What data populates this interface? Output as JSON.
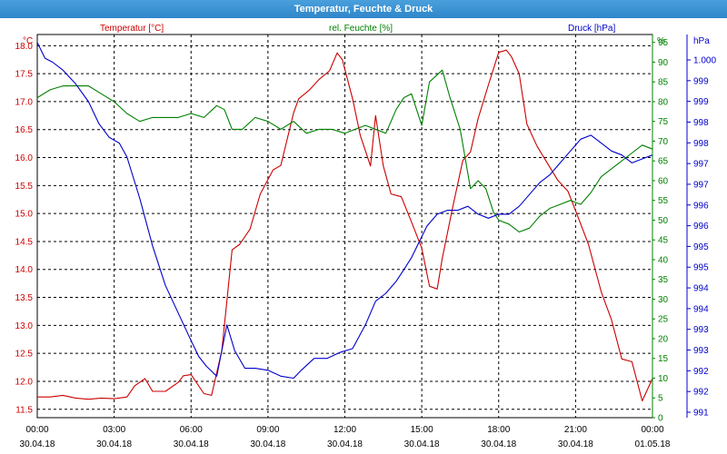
{
  "window": {
    "title": "Temperatur, Feuchte & Druck"
  },
  "chart_data": {
    "type": "line",
    "title": "Temperatur, Feuchte & Druck",
    "x_range": [
      "30.04.18 00:00",
      "01.05.18 00:00"
    ],
    "x_ticks": [
      {
        "time": "00:00",
        "date": "30.04.18"
      },
      {
        "time": "03:00",
        "date": "30.04.18"
      },
      {
        "time": "06:00",
        "date": "30.04.18"
      },
      {
        "time": "09:00",
        "date": "30.04.18"
      },
      {
        "time": "12:00",
        "date": "30.04.18"
      },
      {
        "time": "15:00",
        "date": "30.04.18"
      },
      {
        "time": "18:00",
        "date": "30.04.18"
      },
      {
        "time": "21:00",
        "date": "30.04.18"
      },
      {
        "time": "00:00",
        "date": "01.05.18"
      }
    ],
    "grid": true,
    "axes": {
      "temperature": {
        "label": "Temperatur [°C]",
        "unit": "°C",
        "color": "#cc0000",
        "ylim": [
          11.35,
          18.2
        ],
        "ticks": [
          "11.5",
          "12.0",
          "12.5",
          "13.0",
          "13.5",
          "14.0",
          "14.5",
          "15.0",
          "15.5",
          "16.0",
          "16.5",
          "17.0",
          "17.5",
          "18.0"
        ]
      },
      "humidity": {
        "label": "rel. Feuchte [%]",
        "unit": "%",
        "color": "#008000",
        "ylim": [
          0,
          97
        ],
        "ticks": [
          "0",
          "5",
          "10",
          "15",
          "20",
          "25",
          "30",
          "35",
          "40",
          "45",
          "50",
          "55",
          "60",
          "65",
          "70",
          "75",
          "80",
          "85",
          "90",
          "95"
        ]
      },
      "pressure": {
        "label": "Druck [hPa]",
        "unit": "hPa",
        "color": "#0000cc",
        "ylim": [
          990.85,
          1000.55
        ],
        "ticks": [
          "991",
          "992",
          "992",
          "993",
          "993",
          "994",
          "994",
          "995",
          "995",
          "996",
          "996",
          "997",
          "997",
          "998",
          "998",
          "999",
          "999",
          "1.000"
        ]
      }
    },
    "series": [
      {
        "name": "Temperatur [°C]",
        "axis": "temperature",
        "color": "#cc0000",
        "x": [
          0,
          0.5,
          1,
          1.5,
          2,
          2.5,
          3,
          3.5,
          3.8,
          4.2,
          4.5,
          5,
          5.5,
          5.7,
          6,
          6.5,
          6.8,
          7.2,
          7.6,
          7.9,
          8.3,
          8.7,
          9.2,
          9.5,
          10,
          10.2,
          10.6,
          11,
          11.4,
          11.7,
          11.9,
          12.3,
          12.6,
          13.0,
          13.2,
          13.5,
          13.8,
          14.2,
          14.6,
          15,
          15.3,
          15.6,
          15.8,
          16.2,
          16.6,
          16.9,
          17.2,
          17.6,
          18,
          18.3,
          18.5,
          18.8,
          19.1,
          19.5,
          19.9,
          20.3,
          20.7,
          21,
          21.5,
          22,
          22.4,
          22.8,
          23.2,
          23.6,
          24
        ],
        "y": [
          11.72,
          11.72,
          11.75,
          11.7,
          11.68,
          11.7,
          11.69,
          11.72,
          11.92,
          12.05,
          11.82,
          11.82,
          11.98,
          12.1,
          12.12,
          11.78,
          11.75,
          12.55,
          14.35,
          14.45,
          14.72,
          15.35,
          15.78,
          15.86,
          16.8,
          17.05,
          17.2,
          17.4,
          17.55,
          17.87,
          17.75,
          17.05,
          16.4,
          15.85,
          16.75,
          15.85,
          15.35,
          15.3,
          14.85,
          14.38,
          13.7,
          13.65,
          14.2,
          15.1,
          15.95,
          16.1,
          16.7,
          17.3,
          17.88,
          17.92,
          17.8,
          17.5,
          16.6,
          16.2,
          15.9,
          15.6,
          15.4,
          15.05,
          14.45,
          13.6,
          13.1,
          12.4,
          12.35,
          11.65,
          12.05
        ]
      },
      {
        "name": "rel. Feuchte [%]",
        "axis": "humidity",
        "color": "#008000",
        "x": [
          0,
          0.5,
          1,
          1.5,
          2,
          2.5,
          3,
          3.5,
          4,
          4.5,
          5,
          5.5,
          6,
          6.5,
          7,
          7.3,
          7.6,
          8,
          8.5,
          9,
          9.5,
          10,
          10.5,
          11,
          11.5,
          12,
          12.4,
          12.8,
          13.2,
          13.6,
          14,
          14.3,
          14.6,
          15,
          15.3,
          15.8,
          16.1,
          16.5,
          16.9,
          17.2,
          17.5,
          17.8,
          18,
          18.4,
          18.8,
          19.2,
          19.6,
          20,
          20.4,
          20.8,
          21.2,
          21.6,
          22,
          22.4,
          22.8,
          23.2,
          23.6,
          24
        ],
        "y": [
          81,
          83,
          84,
          84,
          84,
          82,
          80,
          77,
          75,
          76,
          76,
          76,
          77,
          76,
          79,
          78,
          73,
          73,
          76,
          75,
          73,
          75,
          72,
          73,
          73,
          72,
          73,
          74,
          73,
          72,
          78,
          81,
          82,
          74,
          85,
          88,
          81,
          73,
          58,
          60,
          58,
          52,
          50,
          49,
          47,
          48,
          51,
          53,
          54,
          55,
          54,
          57,
          61,
          63,
          65,
          67,
          69,
          68
        ]
      },
      {
        "name": "Druck [hPa]",
        "axis": "pressure",
        "color": "#0000cc",
        "x": [
          0,
          0.3,
          0.6,
          1,
          1.5,
          2,
          2.4,
          2.8,
          3.2,
          3.5,
          4,
          4.5,
          5,
          5.5,
          6,
          6.3,
          6.6,
          7,
          7.4,
          7.7,
          8.1,
          8.5,
          9,
          9.5,
          10,
          10.3,
          10.8,
          11.3,
          11.8,
          12.3,
          12.8,
          13.2,
          13.6,
          14,
          14.3,
          14.6,
          14.9,
          15.2,
          15.6,
          16,
          16.4,
          16.8,
          17.2,
          17.6,
          18,
          18.4,
          18.8,
          19.2,
          19.6,
          20,
          20.4,
          20.8,
          21.2,
          21.6,
          22,
          22.4,
          22.8,
          23.2,
          23.6,
          24
        ],
        "y": [
          1000.35,
          999.95,
          999.85,
          999.65,
          999.3,
          998.85,
          998.3,
          997.95,
          997.8,
          997.45,
          996.4,
          995.2,
          994.2,
          993.5,
          992.8,
          992.4,
          992.15,
          991.9,
          993.2,
          992.55,
          992.1,
          992.1,
          992.05,
          991.9,
          991.85,
          992.05,
          992.35,
          992.35,
          992.5,
          992.6,
          993.2,
          993.8,
          994.0,
          994.3,
          994.6,
          994.9,
          995.3,
          995.7,
          996.0,
          996.1,
          996.1,
          996.2,
          996.0,
          995.9,
          996.0,
          996.0,
          996.2,
          996.5,
          996.8,
          997.0,
          997.3,
          997.6,
          997.9,
          998.0,
          997.8,
          997.6,
          997.5,
          997.3,
          997.4,
          997.5
        ]
      }
    ]
  }
}
